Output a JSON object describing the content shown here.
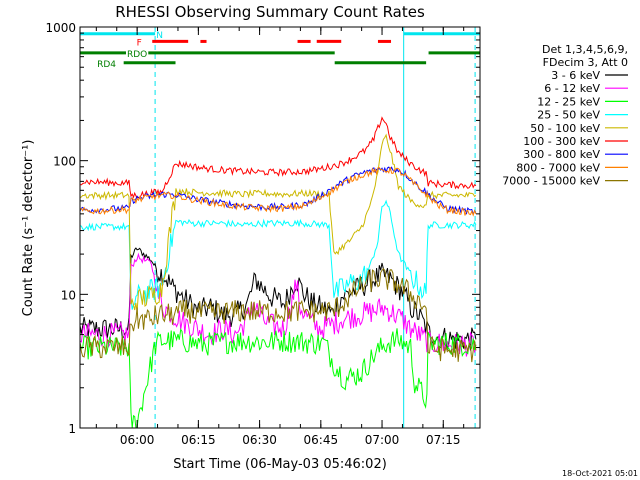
{
  "chart_data": {
    "type": "line",
    "title": "RHESSI Observing Summary Count Rates",
    "xlabel": "Start Time (06-May-03 05:46:02)",
    "ylabel": "Count Rate (s⁻¹ detector⁻¹)",
    "x_unit": "minutes after 05:46:02",
    "xlim": [
      0,
      98
    ],
    "ylim": [
      1,
      1000
    ],
    "yscale": "log",
    "x_ticks": [
      {
        "v": 14.0,
        "label": "06:00"
      },
      {
        "v": 29.0,
        "label": "06:15"
      },
      {
        "v": 44.0,
        "label": "06:30"
      },
      {
        "v": 59.0,
        "label": "06:45"
      },
      {
        "v": 74.0,
        "label": "07:00"
      },
      {
        "v": 89.0,
        "label": "07:15"
      }
    ],
    "y_ticks": [
      {
        "v": 1,
        "label": "1"
      },
      {
        "v": 10,
        "label": "10"
      },
      {
        "v": 100,
        "label": "100"
      },
      {
        "v": 1000,
        "label": "1000"
      }
    ],
    "legend_header": [
      "Det 1,3,4,5,6,9,",
      "FDecim 3, Att 0"
    ],
    "legend_position": "right",
    "footer_date": "18-Oct-2021 05:01",
    "vlines": [
      {
        "x": 0,
        "style": "solid",
        "color": "#00e5ee"
      },
      {
        "x": 18.4,
        "style": "dashed",
        "color": "#00e5ee"
      },
      {
        "x": 79.3,
        "style": "solid",
        "color": "#00e5ee"
      },
      {
        "x": 96.8,
        "style": "dashed",
        "color": "#00e5ee"
      }
    ],
    "flags": [
      {
        "label": "N",
        "color": "#00e5ee",
        "y": 890,
        "segments": [
          [
            0,
            18.4
          ],
          [
            79.3,
            98
          ]
        ],
        "label_x": 19.5
      },
      {
        "label": "F",
        "color": "#ff0000",
        "y": 780,
        "segments": [
          [
            17.7,
            26.5
          ],
          [
            29.5,
            31.0
          ],
          [
            53.3,
            56.5
          ],
          [
            58.0,
            64.0
          ],
          [
            73.0,
            76.2
          ]
        ],
        "label_x": 14.5
      },
      {
        "label": "RDO",
        "color": "#007f00",
        "y": 640,
        "segments": [
          [
            0,
            62.4
          ],
          [
            85.4,
            98
          ]
        ],
        "label_x": 14.0
      },
      {
        "label": "RD4",
        "color": "#007f00",
        "y": 540,
        "segments": [
          [
            10.7,
            23.4
          ],
          [
            62.4,
            84.8
          ]
        ],
        "label_x": 6.5
      }
    ],
    "series": [
      {
        "name": "3 - 6 keV",
        "color": "#000000",
        "x": [
          0,
          12.0,
          12.5,
          14,
          17.5,
          19.0,
          20.5,
          23,
          26,
          29,
          32,
          35,
          38,
          41,
          43,
          45,
          47,
          50,
          53,
          55,
          57,
          59,
          62,
          63,
          64,
          68,
          72,
          74,
          76,
          79,
          81,
          83,
          85,
          85.3,
          88,
          92,
          97
        ],
        "y": [
          5.5,
          5.5,
          19,
          22,
          18,
          15,
          14,
          11,
          9,
          7.5,
          8,
          7,
          7,
          8.5,
          13,
          11,
          9.5,
          8.5,
          13,
          10,
          8.5,
          8,
          7.2,
          8.5,
          9.5,
          11,
          13,
          14,
          13,
          10.5,
          8,
          7,
          5.5,
          5.2,
          4.8,
          4.6,
          4.6
        ]
      },
      {
        "name": "6 - 12 keV",
        "color": "#ff00ff",
        "x": [
          0,
          12.0,
          12.5,
          14,
          17.5,
          19.0,
          20.5,
          23,
          26,
          29,
          32,
          35,
          38,
          41,
          42.5,
          44,
          46,
          50,
          52,
          53,
          54,
          57,
          59,
          62,
          64,
          68,
          72,
          74,
          76,
          79,
          81,
          83,
          85,
          85.3,
          88,
          92,
          97
        ],
        "y": [
          5,
          5,
          16,
          19,
          17,
          10,
          8,
          7,
          6,
          5.5,
          5,
          5.5,
          5,
          6.5,
          8.5,
          7,
          6,
          5.5,
          9,
          12,
          8,
          6,
          5.5,
          6,
          6.5,
          7,
          7.5,
          8,
          7.5,
          6.5,
          5.5,
          5,
          4.5,
          4.3,
          4.3,
          4.2,
          4.2
        ]
      },
      {
        "name": "12 - 25 keV",
        "color": "#00ff00",
        "x": [
          0,
          12.0,
          12.5,
          14,
          18.5,
          20,
          25,
          30,
          35,
          40,
          45,
          50,
          55,
          60,
          62,
          65,
          69,
          72,
          75,
          78,
          81,
          82,
          85,
          85.3,
          90,
          97
        ],
        "y": [
          4,
          4,
          1.1,
          1.1,
          4.2,
          4.5,
          4.5,
          4.2,
          4.4,
          4.5,
          4.4,
          4.5,
          4.4,
          4.3,
          3.1,
          2.3,
          2.6,
          3.5,
          4.3,
          4.6,
          4.0,
          2.2,
          1.6,
          4.3,
          4.3,
          4.2
        ]
      },
      {
        "name": "25 - 50 keV",
        "color": "#00ffff",
        "x": [
          0,
          12.0,
          12.5,
          14,
          18.5,
          20,
          23.5,
          28,
          35,
          40,
          45,
          50,
          55,
          61,
          62.2,
          66,
          69,
          71,
          73,
          74,
          75,
          76,
          78,
          81,
          84.8,
          85.3,
          90,
          97
        ],
        "y": [
          32,
          32,
          8,
          9.5,
          11,
          11.5,
          35,
          34,
          34,
          33,
          34,
          34,
          34,
          33,
          10,
          12,
          13,
          16,
          25,
          45,
          50,
          40,
          20,
          14,
          10,
          33,
          33,
          33
        ]
      },
      {
        "name": "50 - 100 keV",
        "color": "#ccb800",
        "x": [
          0,
          12.0,
          12.5,
          14,
          18.5,
          20,
          23.5,
          28,
          35,
          40,
          45,
          50,
          55,
          61,
          62.2,
          66,
          69,
          71,
          73,
          74,
          75,
          76,
          78,
          81,
          84.8,
          85.3,
          90,
          97
        ],
        "y": [
          55,
          55,
          8,
          9,
          10,
          11,
          60,
          58,
          57,
          56,
          57,
          56,
          57,
          56,
          20,
          25,
          32,
          45,
          80,
          135,
          150,
          120,
          65,
          50,
          45,
          55,
          55,
          55
        ]
      },
      {
        "name": "100 - 300 keV",
        "color": "#ff0000",
        "x": [
          0,
          10,
          12.0,
          12.5,
          14,
          18.5,
          20,
          23.5,
          26,
          30,
          35,
          40,
          45,
          50,
          55,
          58,
          61,
          64,
          67,
          70,
          72,
          73,
          74,
          75,
          76,
          78,
          81,
          84.8,
          85.3,
          90,
          97
        ],
        "y": [
          70,
          68,
          68,
          55,
          55,
          58,
          58,
          95,
          93,
          88,
          85,
          83,
          82,
          82,
          83,
          86,
          90,
          95,
          105,
          120,
          145,
          175,
          210,
          190,
          150,
          115,
          95,
          80,
          68,
          66,
          65
        ]
      },
      {
        "name": "300 - 800 keV",
        "color": "#0000ff",
        "x": [
          0,
          5,
          10,
          12.0,
          12.5,
          14,
          18,
          20,
          23,
          28,
          35,
          40,
          45,
          50,
          55,
          58,
          61,
          64,
          67,
          70,
          73,
          75,
          78,
          80,
          82,
          84.8,
          85.3,
          88,
          90,
          97
        ],
        "y": [
          43,
          43,
          44,
          44,
          50,
          52,
          55,
          56,
          56,
          52,
          48,
          46,
          45,
          45,
          47,
          52,
          60,
          68,
          76,
          82,
          86,
          87,
          86,
          78,
          68,
          58,
          56,
          48,
          44,
          41
        ]
      },
      {
        "name": "800 - 7000 keV",
        "color": "#ff8000",
        "x": [
          0,
          5,
          10,
          12.0,
          12.5,
          14,
          18,
          20,
          23,
          28,
          35,
          40,
          45,
          50,
          55,
          58,
          61,
          64,
          67,
          70,
          73,
          75,
          78,
          80,
          82,
          84.8,
          85.3,
          88,
          90,
          97
        ],
        "y": [
          42,
          42,
          43,
          43,
          50,
          51,
          54,
          55,
          55,
          51,
          47,
          45,
          44,
          44,
          46,
          51,
          58,
          66,
          74,
          80,
          84,
          85,
          84,
          76,
          66,
          56,
          54,
          46,
          43,
          40
        ]
      },
      {
        "name": "7000 - 15000 keV",
        "color": "#8b7500",
        "x": [
          0,
          12.0,
          12.5,
          14,
          17.5,
          19,
          22,
          26,
          30,
          35,
          40,
          45,
          50,
          55,
          60,
          62,
          65,
          68,
          72,
          75,
          78,
          81,
          84.8,
          85.3,
          90,
          97
        ],
        "y": [
          4,
          4,
          6,
          6.5,
          6.5,
          7,
          7,
          7.5,
          7.2,
          7.3,
          7.5,
          7.4,
          7.4,
          7.5,
          7.5,
          7.5,
          9,
          11,
          13,
          13,
          12,
          10,
          8,
          4,
          3.8,
          3.8
        ]
      }
    ]
  }
}
